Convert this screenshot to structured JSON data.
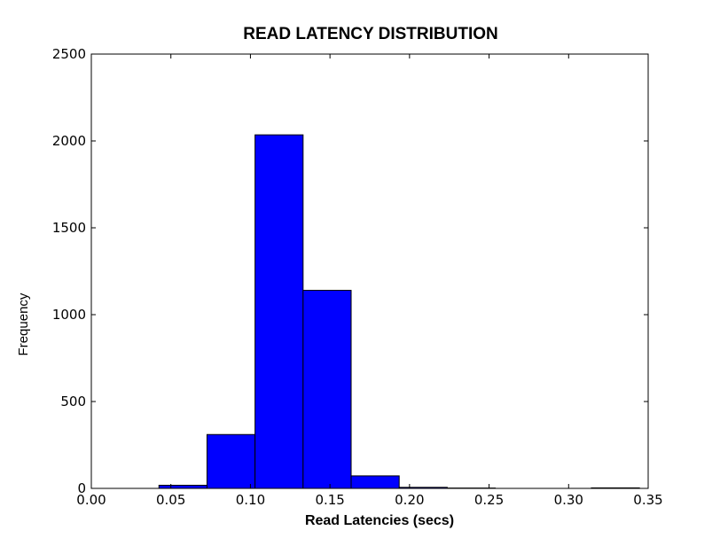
{
  "chart_data": {
    "type": "bar",
    "title": "READ LATENCY DISTRIBUTION",
    "xlabel": "Read Latencies (secs)",
    "ylabel": "Frequency",
    "xlim": [
      0.0,
      0.35
    ],
    "ylim": [
      0,
      2500
    ],
    "x_ticks": [
      "0.00",
      "0.05",
      "0.10",
      "0.15",
      "0.20",
      "0.25",
      "0.30",
      "0.35"
    ],
    "y_ticks": [
      "0",
      "500",
      "1000",
      "1500",
      "2000",
      "2500"
    ],
    "bin_edges": [
      0.0425,
      0.0727,
      0.1029,
      0.1331,
      0.1633,
      0.1935,
      0.2237,
      0.2539,
      0.2841,
      0.3143,
      0.3445
    ],
    "values": [
      18,
      310,
      2035,
      1140,
      72,
      6,
      2,
      0,
      0,
      3
    ],
    "bar_color": "#0000ff",
    "edge_color": "#000000",
    "grid": false,
    "legend": "none"
  }
}
